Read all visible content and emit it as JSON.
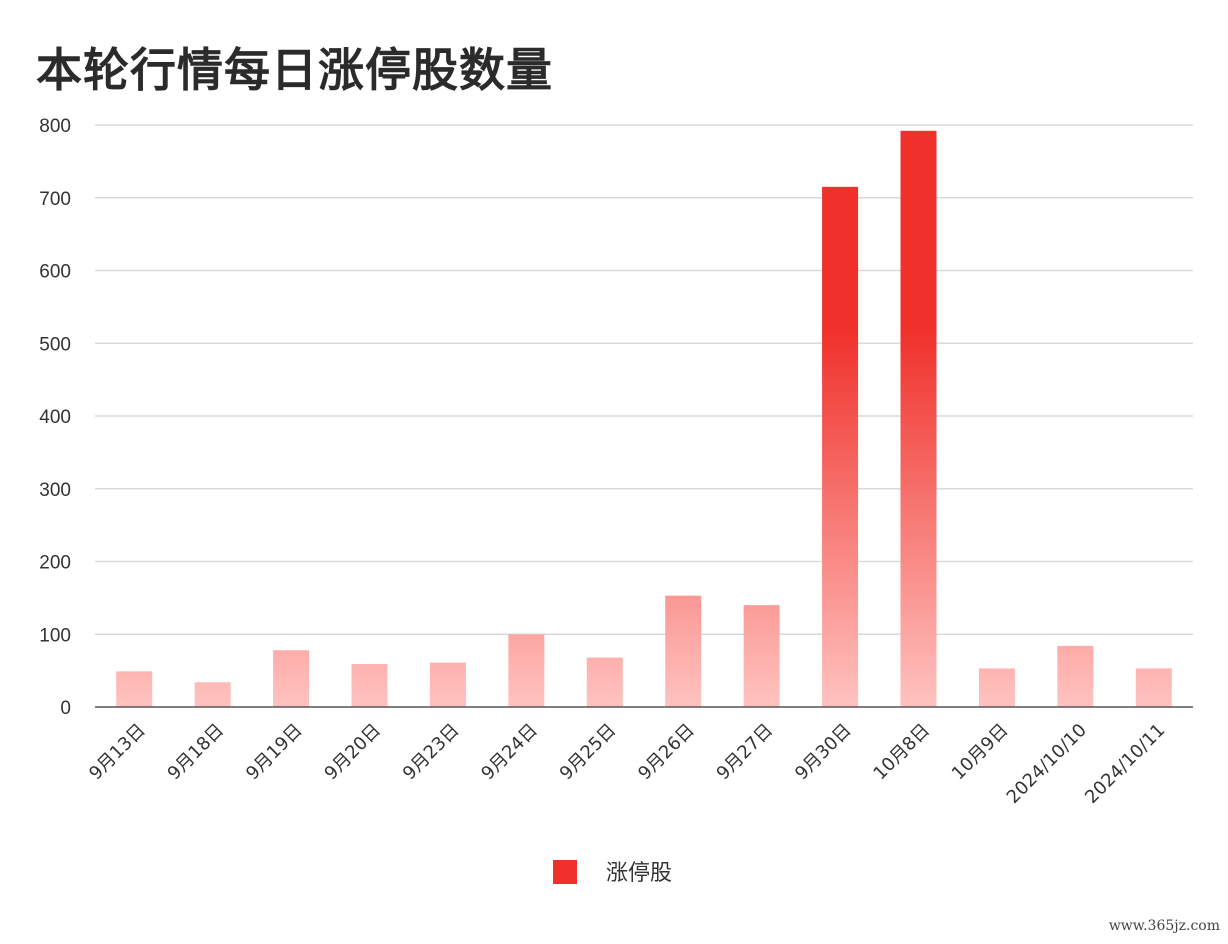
{
  "chart_data": {
    "type": "bar",
    "title": "本轮行情每日涨停股数量",
    "categories": [
      "9月13日",
      "9月18日",
      "9月19日",
      "9月20日",
      "9月23日",
      "9月24日",
      "9月25日",
      "9月26日",
      "9月27日",
      "9月30日",
      "10月8日",
      "10月9日",
      "2024/10/10",
      "2024/10/11"
    ],
    "series": [
      {
        "name": "涨停股",
        "values": [
          49,
          34,
          78,
          59,
          61,
          100,
          68,
          153,
          140,
          715,
          792,
          53,
          84,
          53
        ]
      }
    ],
    "ylim": [
      0,
      800
    ],
    "yticks": [
      0,
      100,
      200,
      300,
      400,
      500,
      600,
      700,
      800
    ],
    "grid": true,
    "legend_position": "bottom-center",
    "colors": {
      "bar_top": "#f0302a",
      "bar_bottom": "#ffc3c0",
      "legend": "#f0302a"
    }
  },
  "watermark": "www.365jz.com"
}
